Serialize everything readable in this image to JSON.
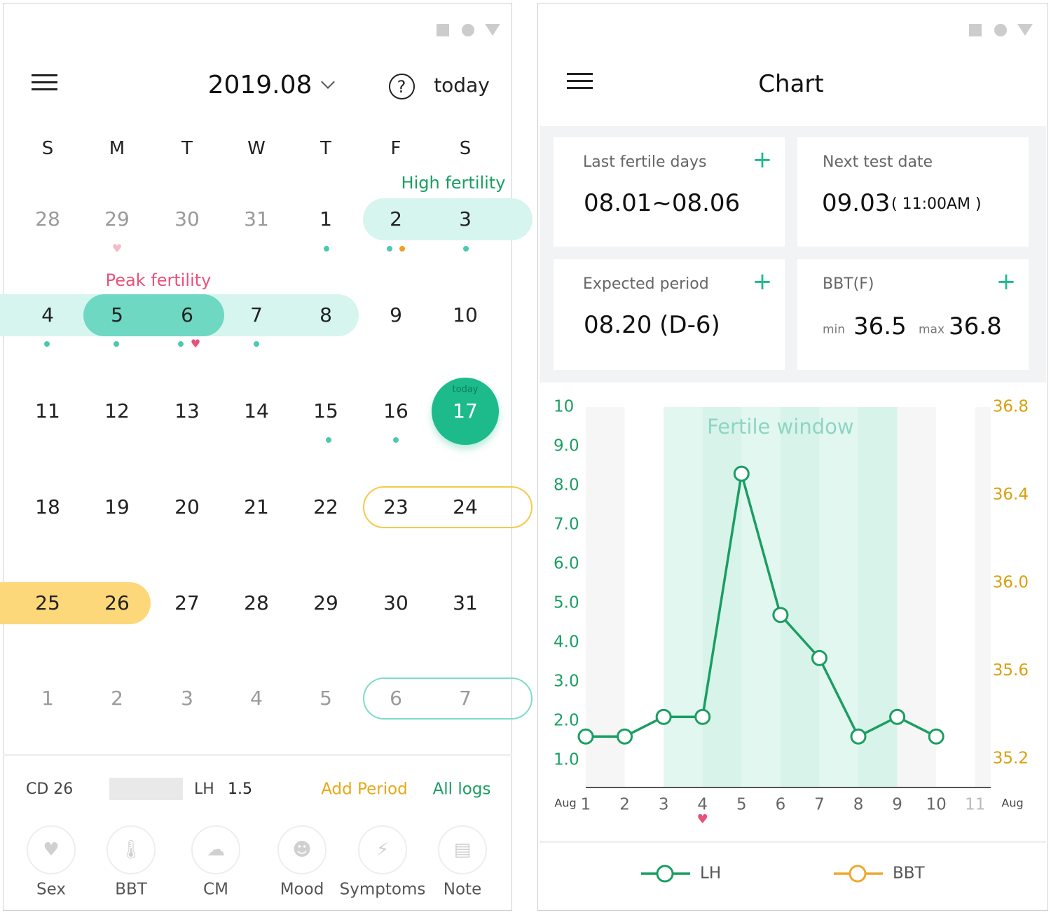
{
  "calendar_screen": {
    "month": "2019.08",
    "help": "?",
    "today_button": "today",
    "weekdays": [
      "S",
      "M",
      "T",
      "W",
      "T",
      "F",
      "S"
    ],
    "high_fertility_label": "High fertility",
    "peak_fertility_label": "Peak fertility",
    "weeks": [
      [
        28,
        29,
        30,
        31,
        1,
        2,
        3
      ],
      [
        4,
        5,
        6,
        7,
        8,
        9,
        10
      ],
      [
        11,
        12,
        13,
        14,
        15,
        16,
        17
      ],
      [
        18,
        19,
        20,
        21,
        22,
        23,
        24
      ],
      [
        25,
        26,
        27,
        28,
        29,
        30,
        31
      ],
      [
        1,
        2,
        3,
        4,
        5,
        6,
        7
      ]
    ],
    "today_marker": "today",
    "footer": {
      "cycle_day": "CD 26",
      "lh_label": "LH",
      "lh_value": 1.5,
      "add_period": "Add Period",
      "all_logs": "All logs"
    },
    "log_buttons": [
      "Sex",
      "BBT",
      "CM",
      "Mood",
      "Symptoms",
      "Note"
    ]
  },
  "chart_screen": {
    "title": "Chart",
    "cards": [
      {
        "label": "Last fertile days",
        "value": "08.01~08.06"
      },
      {
        "label": "Next test date",
        "value": "09.03",
        "note": "( 11:00AM )"
      },
      {
        "label": "Expected period",
        "value": "08.20 (D-6)"
      },
      {
        "label": "BBT(F)",
        "min_label": "min",
        "min": 36.5,
        "max_label": "max",
        "max": 36.8
      }
    ]
  },
  "chart_data": {
    "type": "line",
    "annotation": "Fertile window",
    "shaded_range": [
      3,
      9
    ],
    "x": [
      1,
      2,
      3,
      4,
      5,
      6,
      7,
      8,
      9,
      10
    ],
    "xlim": [
      1,
      11.4
    ],
    "xticks": [
      1,
      2,
      3,
      4,
      5,
      6,
      7,
      8,
      9,
      10,
      11
    ],
    "x_start_label": "Aug",
    "x_end_label": "Aug",
    "ylim": [
      0.3,
      10
    ],
    "yticks": [
      {
        "value": 1,
        "label": "1.0"
      },
      {
        "value": 2,
        "label": "2.0"
      },
      {
        "value": 3,
        "label": "3.0"
      },
      {
        "value": 4,
        "label": "4.0"
      },
      {
        "value": 5,
        "label": "5.0"
      },
      {
        "value": 6,
        "label": "6.0"
      },
      {
        "value": 7,
        "label": "7.0"
      },
      {
        "value": 8,
        "label": "8.0"
      },
      {
        "value": 9,
        "label": "9.0"
      },
      10
    ],
    "y2lim": [
      35.07,
      36.8
    ],
    "y2ticks": [
      35.2,
      35.6,
      {
        "value": 36,
        "label": "36.0"
      },
      36.4,
      36.8
    ],
    "series": [
      {
        "name": "LH",
        "color": "#1a9e62",
        "values": [
          1.6,
          1.6,
          2.1,
          2.1,
          8.3,
          4.7,
          3.6,
          1.6,
          2.1,
          1.6
        ]
      },
      {
        "name": "BBT",
        "color": "#f0a830",
        "axis": "y2",
        "values": [
          null,
          null,
          null,
          null,
          null,
          null,
          null,
          null,
          null,
          null
        ]
      }
    ]
  }
}
